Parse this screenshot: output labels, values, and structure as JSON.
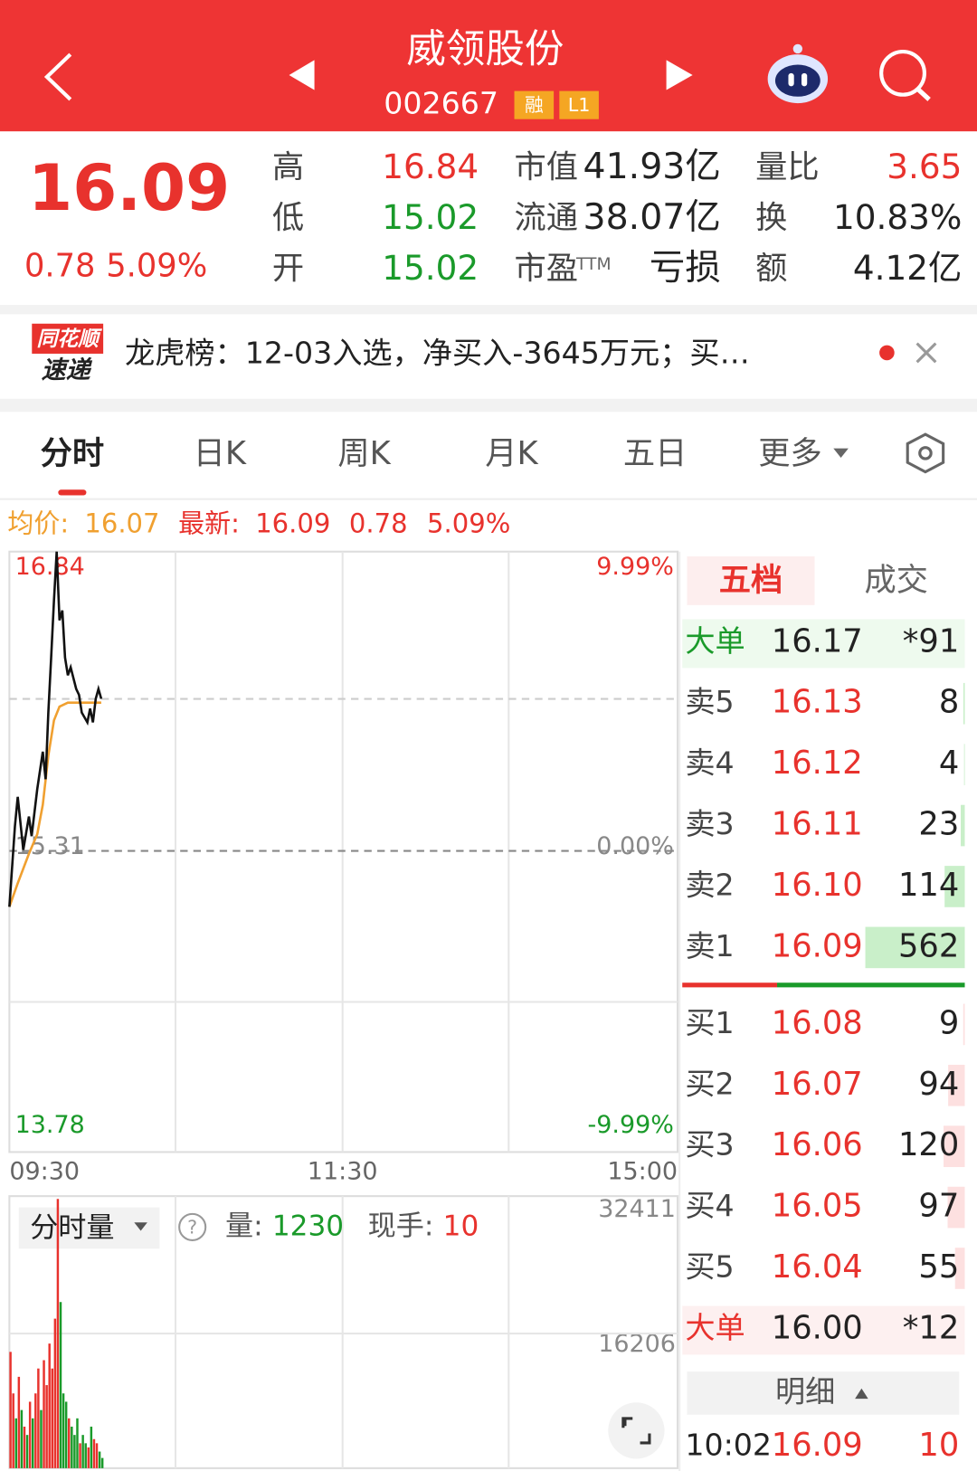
{
  "header": {
    "title": "威领股份",
    "code": "002667",
    "badges": [
      "融",
      "L1"
    ]
  },
  "quote": {
    "price": "16.09",
    "change": "0.78",
    "pct": "5.09%",
    "col1": [
      {
        "label": "高",
        "value": "16.84"
      },
      {
        "label": "低",
        "value": "15.02"
      },
      {
        "label": "开",
        "value": "15.02"
      }
    ],
    "col2": [
      {
        "label": "市值",
        "value": "41.93亿"
      },
      {
        "label": "流通",
        "value": "38.07亿"
      },
      {
        "label": "市盈",
        "sup": "TTM",
        "value": "亏损"
      }
    ],
    "col3": [
      {
        "label": "量比",
        "value": "3.65"
      },
      {
        "label": "换",
        "value": "10.83%"
      },
      {
        "label": "额",
        "value": "4.12亿"
      }
    ]
  },
  "banner": {
    "brand": [
      "同花顺",
      "速递"
    ],
    "text": "龙虎榜：12-03入选，净买入-3645万元；买…"
  },
  "tabs": [
    "分时",
    "日K",
    "周K",
    "月K",
    "五日",
    "更多"
  ],
  "info": {
    "avg_label": "均价:",
    "avg": "16.07",
    "last_label": "最新:",
    "last": "16.09",
    "change": "0.78",
    "pct": "5.09%"
  },
  "chart": {
    "left_labels": [
      "16.84",
      "15.31",
      "13.78"
    ],
    "right_labels": [
      "9.99%",
      "0.00%",
      "-9.99%"
    ],
    "times": [
      "09:30",
      "11:30",
      "15:00"
    ],
    "ylim": [
      13.78,
      16.84
    ],
    "xlim": [
      0,
      240
    ],
    "price": {
      "color": "#111111",
      "x": [
        0,
        2,
        3,
        5,
        7,
        8,
        10,
        12,
        13,
        14,
        15,
        16,
        17,
        18,
        19,
        20,
        21,
        22,
        24,
        25,
        26,
        28,
        29,
        30,
        31,
        32,
        33
      ],
      "values": [
        15.03,
        15.44,
        15.59,
        15.32,
        15.49,
        15.39,
        15.63,
        15.82,
        15.68,
        16.02,
        16.3,
        16.59,
        16.84,
        16.49,
        16.54,
        16.3,
        16.21,
        16.25,
        16.14,
        16.11,
        16.02,
        15.97,
        16.04,
        15.97,
        16.09,
        16.14,
        16.09
      ]
    },
    "avg": {
      "color": "#f0a030",
      "x": [
        0,
        3,
        7,
        10,
        12,
        14,
        16,
        18,
        21,
        26,
        33
      ],
      "values": [
        15.03,
        15.15,
        15.3,
        15.4,
        15.55,
        15.8,
        15.98,
        16.05,
        16.07,
        16.07,
        16.07
      ]
    }
  },
  "volume": {
    "selector": "分时量",
    "vol_label": "量:",
    "vol": "1230",
    "hand_label": "现手:",
    "hand": "10",
    "yticks": [
      {
        "value": 32411,
        "label": "32411"
      },
      {
        "value": 16206,
        "label": "16206"
      }
    ],
    "ylim": [
      0,
      32411
    ],
    "values": [
      14000,
      9000,
      6000,
      11000,
      7000,
      5000,
      4000,
      8000,
      6000,
      9000,
      12000,
      7000,
      13000,
      10000,
      15000,
      12000,
      18000,
      32411,
      20000,
      9000,
      8000,
      6000,
      5000,
      4000,
      6000,
      3000,
      4000,
      3000,
      2500,
      5000,
      3500,
      3000,
      2000,
      1230
    ],
    "colors": [
      "#e8322d",
      "#e8322d",
      "#1a9a2a",
      "#e8322d",
      "#1a9a2a",
      "#e8322d",
      "#1a9a2a",
      "#e8322d",
      "#1a9a2a",
      "#e8322d",
      "#e8322d",
      "#1a9a2a",
      "#e8322d",
      "#e8322d",
      "#e8322d",
      "#e8322d",
      "#e8322d",
      "#e8322d",
      "#1a9a2a",
      "#1a9a2a",
      "#1a9a2a",
      "#e8322d",
      "#1a9a2a",
      "#1a9a2a",
      "#1a9a2a",
      "#e8322d",
      "#1a9a2a",
      "#1a9a2a",
      "#e8322d",
      "#1a9a2a",
      "#e8322d",
      "#e8322d",
      "#1a9a2a",
      "#1a9a2a"
    ]
  },
  "book": {
    "tabs": [
      "五档",
      "成交"
    ],
    "big_sell": {
      "label": "大单",
      "price": "16.17",
      "vol": "*91"
    },
    "asks": [
      {
        "label": "卖5",
        "price": "16.13",
        "vol": 8
      },
      {
        "label": "卖4",
        "price": "16.12",
        "vol": 4
      },
      {
        "label": "卖3",
        "price": "16.11",
        "vol": 23
      },
      {
        "label": "卖2",
        "price": "16.10",
        "vol": 114
      },
      {
        "label": "卖1",
        "price": "16.09",
        "vol": 562
      }
    ],
    "bids": [
      {
        "label": "买1",
        "price": "16.08",
        "vol": 9
      },
      {
        "label": "买2",
        "price": "16.07",
        "vol": 94
      },
      {
        "label": "买3",
        "price": "16.06",
        "vol": 120
      },
      {
        "label": "买4",
        "price": "16.05",
        "vol": 97
      },
      {
        "label": "买5",
        "price": "16.04",
        "vol": 55
      }
    ],
    "big_buy": {
      "label": "大单",
      "price": "16.00",
      "vol": "*12"
    },
    "detail": "明细",
    "trade": {
      "time": "10:02",
      "price": "16.09",
      "vol": "10"
    }
  }
}
